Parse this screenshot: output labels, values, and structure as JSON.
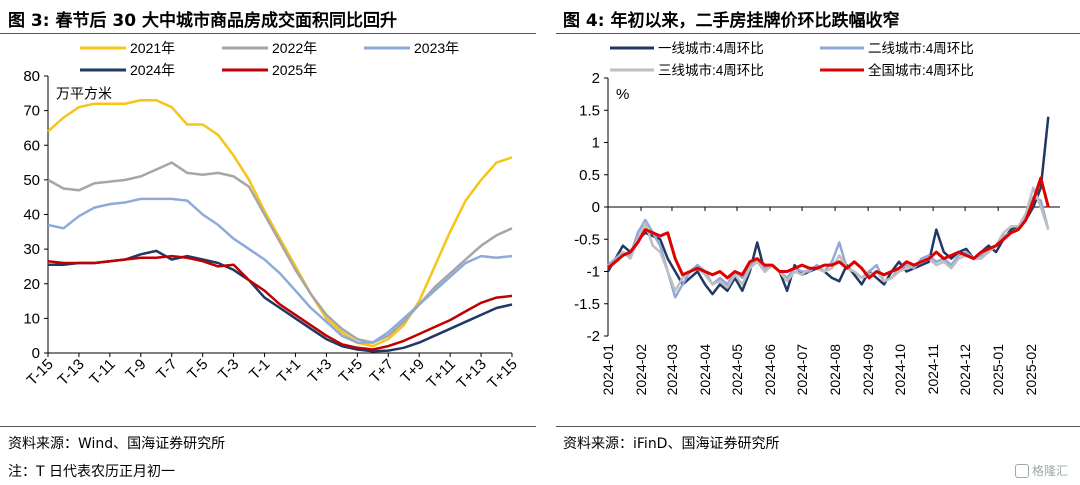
{
  "left": {
    "title": "图 3:  春节后 30 大中城市商品房成交面积同比回升",
    "source": "资料来源：Wind、国海证券研究所",
    "note": "注：T 日代表农历正月初一"
  },
  "right": {
    "title": "图 4:  年初以来，二手房挂牌价环比跌幅收窄",
    "source": "资料来源：iFinD、国海证券研究所"
  },
  "watermark": "格隆汇",
  "chart_data": [
    {
      "type": "line",
      "ylabel": "万平方米",
      "ylim": [
        0,
        80
      ],
      "yticks": [
        0,
        10,
        20,
        30,
        40,
        50,
        60,
        70,
        80
      ],
      "xlim": [
        -15,
        15
      ],
      "xtick_labels": [
        "T-15",
        "T-13",
        "T-11",
        "T-9",
        "T-7",
        "T-5",
        "T-3",
        "T-1",
        "T+1",
        "T+3",
        "T+5",
        "T+7",
        "T+9",
        "T+11",
        "T+13",
        "T+15"
      ],
      "legend_position": "top",
      "x": [
        -15,
        -14,
        -13,
        -12,
        -11,
        -10,
        -9,
        -8,
        -7,
        -6,
        -5,
        -4,
        -3,
        -2,
        -1,
        0,
        1,
        2,
        3,
        4,
        5,
        6,
        7,
        8,
        9,
        10,
        11,
        12,
        13,
        14,
        15
      ],
      "series": [
        {
          "name": "2021年",
          "color": "#F5C518",
          "values": [
            64,
            68,
            71,
            72,
            72,
            72,
            73,
            73,
            71,
            66,
            66,
            63,
            57,
            50,
            41,
            33,
            25,
            17,
            10,
            6,
            3,
            2,
            4,
            8,
            15,
            25,
            35,
            44,
            50,
            55,
            56.5
          ]
        },
        {
          "name": "2022年",
          "color": "#A6A6A6",
          "values": [
            50,
            47.5,
            47,
            49,
            49.5,
            50,
            51,
            53,
            55,
            52,
            51.5,
            52,
            51,
            48,
            40,
            32,
            24,
            17,
            11,
            7,
            4,
            3,
            5,
            9,
            14,
            19,
            23,
            27,
            31,
            34,
            36
          ]
        },
        {
          "name": "2023年",
          "color": "#8EAADB",
          "values": [
            37,
            36,
            39.5,
            42,
            43,
            43.5,
            44.5,
            44.5,
            44.5,
            44,
            40,
            37,
            33,
            30,
            27,
            23,
            18,
            13,
            9,
            5,
            3,
            3,
            6,
            10,
            14,
            18,
            22,
            26,
            28,
            27.5,
            28
          ]
        },
        {
          "name": "2024年",
          "color": "#1F3864",
          "values": [
            25.5,
            25.5,
            26,
            26,
            26.5,
            27,
            28.5,
            29.5,
            27,
            28,
            27,
            26,
            24,
            21,
            16,
            13,
            10,
            7,
            4,
            2,
            1,
            0.5,
            0.7,
            1.5,
            3,
            5,
            7,
            9,
            11,
            13,
            14
          ]
        },
        {
          "name": "2025年",
          "color": "#C00000",
          "values": [
            26.5,
            26,
            26,
            26,
            26.5,
            27,
            27.5,
            27.5,
            28,
            27.5,
            26.5,
            25,
            25.5,
            21,
            18,
            14,
            11,
            8,
            5,
            2.5,
            1.5,
            1,
            2,
            3.5,
            5.5,
            7.5,
            9.5,
            12,
            14.5,
            16,
            16.5
          ]
        }
      ]
    },
    {
      "type": "line",
      "ylabel": "%",
      "ylim": [
        -2,
        2
      ],
      "yticks": [
        -2,
        -1.5,
        -1,
        -0.5,
        0,
        0.5,
        1,
        1.5,
        2
      ],
      "xtick_labels": [
        "2024-01",
        "2024-02",
        "2024-03",
        "2024-04",
        "2024-05",
        "2024-06",
        "2024-07",
        "2024-08",
        "2024-09",
        "2024-10",
        "2024-11",
        "2024-12",
        "2025-01",
        "2025-02"
      ],
      "legend_position": "top",
      "x": [
        "2024-01-01",
        "2024-01-08",
        "2024-01-15",
        "2024-01-22",
        "2024-01-29",
        "2024-02-05",
        "2024-02-12",
        "2024-02-19",
        "2024-02-26",
        "2024-03-04",
        "2024-03-11",
        "2024-03-18",
        "2024-03-25",
        "2024-04-01",
        "2024-04-08",
        "2024-04-15",
        "2024-04-22",
        "2024-04-29",
        "2024-05-06",
        "2024-05-13",
        "2024-05-20",
        "2024-05-27",
        "2024-06-03",
        "2024-06-10",
        "2024-06-17",
        "2024-06-24",
        "2024-07-01",
        "2024-07-08",
        "2024-07-15",
        "2024-07-22",
        "2024-07-29",
        "2024-08-05",
        "2024-08-12",
        "2024-08-19",
        "2024-08-26",
        "2024-09-02",
        "2024-09-09",
        "2024-09-16",
        "2024-09-23",
        "2024-09-30",
        "2024-10-07",
        "2024-10-14",
        "2024-10-21",
        "2024-10-28",
        "2024-11-04",
        "2024-11-11",
        "2024-11-18",
        "2024-11-25",
        "2024-12-02",
        "2024-12-09",
        "2024-12-16",
        "2024-12-23",
        "2024-12-30",
        "2025-01-06",
        "2025-01-13",
        "2025-01-20",
        "2025-01-27",
        "2025-02-03",
        "2025-02-10",
        "2025-02-17"
      ],
      "series": [
        {
          "name": "一线城市:4周环比",
          "color": "#1F3864",
          "values": [
            -1.0,
            -0.8,
            -0.6,
            -0.7,
            -0.5,
            -0.4,
            -0.45,
            -0.5,
            -0.8,
            -1.0,
            -1.2,
            -1.1,
            -1.0,
            -1.2,
            -1.35,
            -1.2,
            -1.3,
            -1.1,
            -1.3,
            -1.0,
            -0.55,
            -1.0,
            -0.9,
            -1.0,
            -1.3,
            -0.9,
            -1.05,
            -1.0,
            -0.95,
            -1.0,
            -1.1,
            -1.15,
            -0.9,
            -1.05,
            -1.2,
            -1.0,
            -1.1,
            -1.2,
            -1.0,
            -0.85,
            -1.0,
            -0.95,
            -0.9,
            -0.85,
            -0.35,
            -0.7,
            -0.8,
            -0.7,
            -0.65,
            -0.8,
            -0.7,
            -0.6,
            -0.7,
            -0.5,
            -0.35,
            -0.3,
            -0.2,
            0.0,
            0.3,
            1.4
          ]
        },
        {
          "name": "二线城市:4周环比",
          "color": "#8EAADB",
          "values": [
            -0.9,
            -0.8,
            -0.7,
            -0.75,
            -0.4,
            -0.2,
            -0.4,
            -0.6,
            -1.0,
            -1.4,
            -1.2,
            -1.0,
            -0.9,
            -1.0,
            -1.2,
            -1.1,
            -1.2,
            -1.0,
            -1.1,
            -0.9,
            -0.8,
            -0.95,
            -0.9,
            -1.0,
            -1.1,
            -0.95,
            -1.0,
            -1.0,
            -0.9,
            -1.0,
            -0.85,
            -0.55,
            -0.95,
            -1.0,
            -1.1,
            -1.0,
            -0.9,
            -1.15,
            -1.1,
            -0.95,
            -0.9,
            -0.95,
            -0.8,
            -0.75,
            -0.85,
            -0.8,
            -0.9,
            -0.75,
            -0.7,
            -0.8,
            -0.75,
            -0.65,
            -0.6,
            -0.45,
            -0.4,
            -0.35,
            -0.15,
            0.15,
            0.1,
            -0.35
          ]
        },
        {
          "name": "三线城市:4周环比",
          "color": "#BFBFBF",
          "values": [
            -0.95,
            -0.85,
            -0.7,
            -0.8,
            -0.5,
            -0.25,
            -0.6,
            -0.7,
            -1.0,
            -1.3,
            -1.1,
            -1.0,
            -0.95,
            -1.05,
            -1.2,
            -1.15,
            -1.25,
            -1.05,
            -1.2,
            -0.95,
            -0.85,
            -1.0,
            -0.9,
            -1.0,
            -1.15,
            -1.0,
            -1.05,
            -0.95,
            -0.95,
            -1.0,
            -0.95,
            -0.75,
            -0.95,
            -1.0,
            -1.1,
            -1.05,
            -1.0,
            -1.15,
            -1.1,
            -1.0,
            -0.95,
            -0.9,
            -0.85,
            -0.8,
            -0.9,
            -0.85,
            -0.95,
            -0.8,
            -0.75,
            -0.8,
            -0.8,
            -0.7,
            -0.6,
            -0.4,
            -0.3,
            -0.3,
            -0.1,
            0.3,
            0.0,
            -0.35
          ]
        },
        {
          "name": "全国城市:4周环比",
          "color": "#E00000",
          "values": [
            -0.95,
            -0.85,
            -0.75,
            -0.7,
            -0.55,
            -0.35,
            -0.4,
            -0.45,
            -0.4,
            -0.8,
            -1.05,
            -1.0,
            -0.95,
            -1.0,
            -1.05,
            -1.0,
            -1.1,
            -1.0,
            -1.05,
            -0.85,
            -0.8,
            -0.9,
            -0.9,
            -1.0,
            -1.0,
            -0.95,
            -0.9,
            -0.95,
            -0.95,
            -0.9,
            -0.9,
            -0.85,
            -0.95,
            -0.85,
            -0.95,
            -1.1,
            -1.0,
            -1.05,
            -1.0,
            -0.95,
            -0.85,
            -0.9,
            -0.85,
            -0.8,
            -0.7,
            -0.8,
            -0.75,
            -0.7,
            -0.75,
            -0.8,
            -0.7,
            -0.65,
            -0.6,
            -0.5,
            -0.4,
            -0.35,
            -0.2,
            0.1,
            0.45,
            0.0
          ]
        }
      ]
    }
  ]
}
